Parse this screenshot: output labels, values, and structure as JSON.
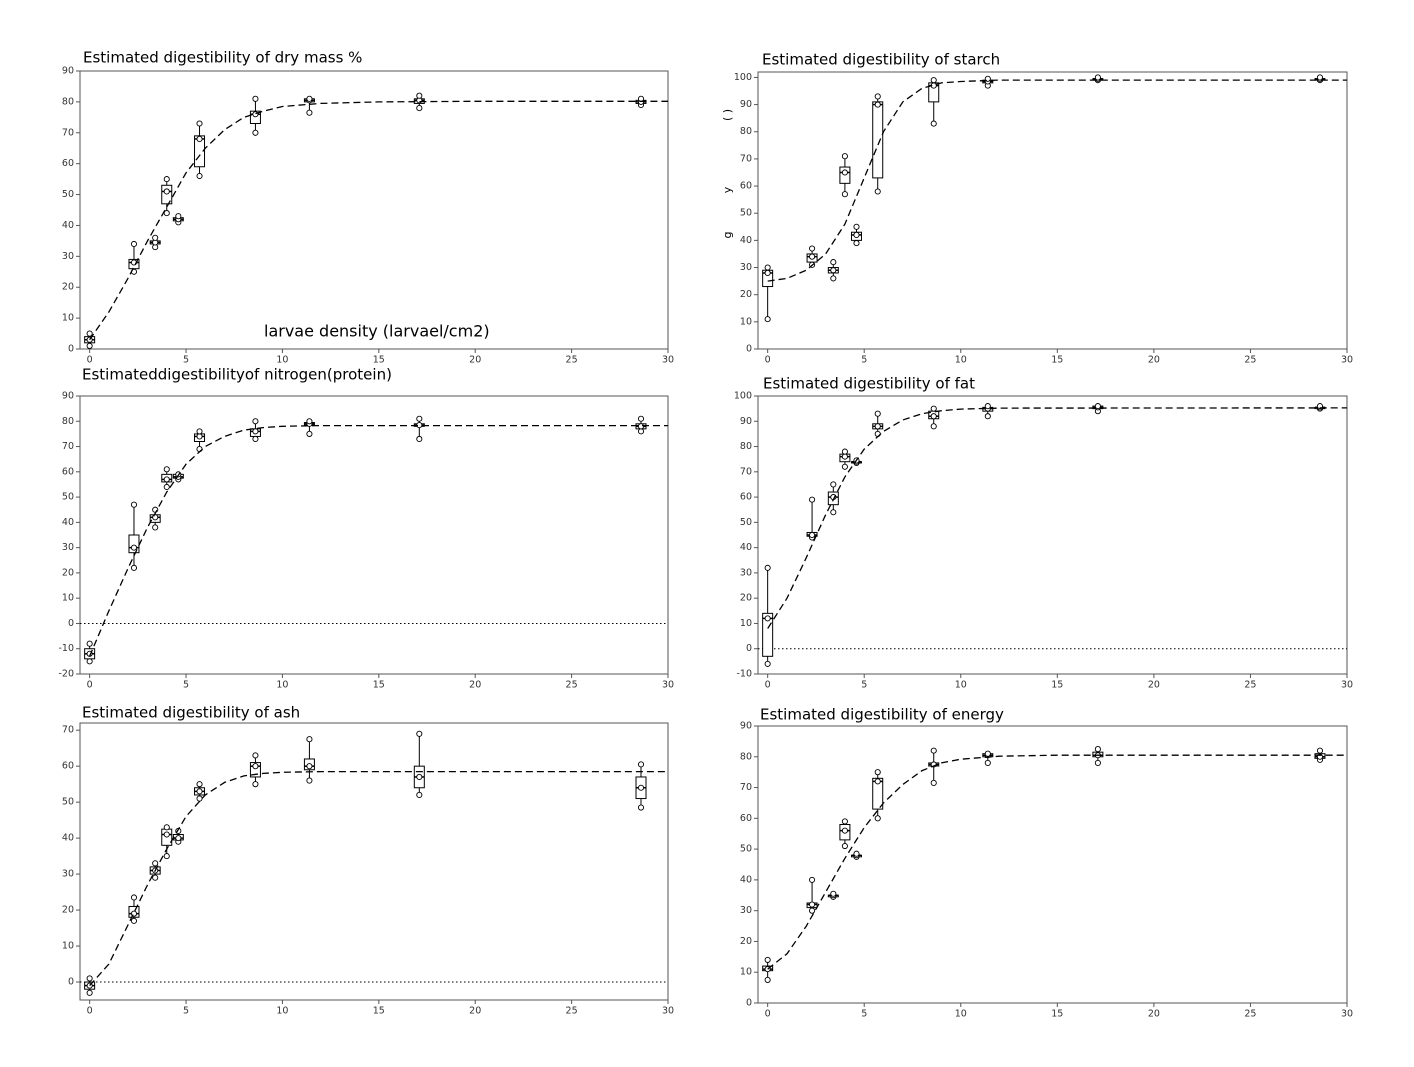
{
  "chart_data": [
    {
      "type": "box",
      "title": "Estimated digestibility of dry mass %",
      "annotation": "larvae density (larvael/cm2)",
      "xlim": [
        -0.5,
        30
      ],
      "xticks": [
        0,
        5,
        10,
        15,
        20,
        25,
        30
      ],
      "ylim": [
        0,
        90
      ],
      "yticks": [
        0,
        10,
        20,
        30,
        40,
        50,
        60,
        70,
        80,
        90
      ],
      "zero_line": false,
      "boxes": {
        "x": [
          0,
          2.3,
          3.4,
          4.0,
          4.6,
          5.7,
          8.6,
          11.4,
          17.1,
          28.6
        ],
        "min": [
          1,
          25,
          33,
          44,
          41,
          56,
          70,
          76.5,
          78,
          79
        ],
        "q1": [
          2,
          26,
          34,
          47,
          41.5,
          59,
          73,
          80,
          79.5,
          79.5
        ],
        "median": [
          3,
          28,
          34.5,
          51,
          42,
          68,
          76,
          80.5,
          80.5,
          80
        ],
        "q3": [
          4,
          29,
          35,
          53,
          42.5,
          69,
          77,
          81,
          81,
          80.5
        ],
        "max": [
          5,
          34,
          36,
          55,
          43,
          73,
          81,
          81,
          82,
          81
        ]
      },
      "curve": {
        "x": [
          0,
          1,
          2,
          3,
          4,
          5,
          6,
          7,
          8,
          9,
          10,
          12,
          15,
          20,
          30
        ],
        "y": [
          3,
          12,
          23,
          35,
          46,
          57,
          65,
          71,
          75,
          77,
          78.5,
          79.5,
          80,
          80.2,
          80.2
        ]
      }
    },
    {
      "type": "box",
      "title": "Estimated digestibility of starch",
      "y_label_parts": [
        "(   )",
        "y",
        "g"
      ],
      "xlim": [
        -0.5,
        30
      ],
      "xticks": [
        0,
        5,
        10,
        15,
        20,
        25,
        30
      ],
      "ylim": [
        0,
        102
      ],
      "yticks": [
        0,
        10,
        20,
        30,
        40,
        50,
        60,
        70,
        80,
        90,
        100
      ],
      "zero_line": false,
      "boxes": {
        "x": [
          0,
          2.3,
          3.4,
          4.0,
          4.6,
          5.7,
          8.6,
          11.4,
          17.1,
          28.6
        ],
        "min": [
          11,
          31,
          26,
          57,
          39,
          58,
          83,
          97,
          99,
          99
        ],
        "q1": [
          23,
          32,
          28,
          61,
          40,
          63,
          91,
          98,
          99.5,
          99.5
        ],
        "median": [
          28,
          34,
          29,
          65,
          42,
          90,
          97,
          98.5,
          99.5,
          99.5
        ],
        "q3": [
          29,
          35,
          30,
          67,
          43,
          91,
          98,
          99,
          99.5,
          99.5
        ],
        "max": [
          30,
          37,
          32,
          71,
          45,
          93,
          99,
          99.5,
          100,
          100
        ]
      },
      "curve": {
        "x": [
          0,
          1,
          2,
          3,
          4,
          5,
          6,
          7,
          8,
          9,
          10,
          12,
          30
        ],
        "y": [
          25,
          26,
          29,
          35,
          46,
          63,
          80,
          91,
          96,
          98,
          98.5,
          99,
          99
        ]
      }
    },
    {
      "type": "box",
      "title": "Estimateddigestibilityof nitrogen(protein)",
      "xlim": [
        -0.5,
        30
      ],
      "xticks": [
        0,
        5,
        10,
        15,
        20,
        25,
        30
      ],
      "ylim": [
        -20,
        90
      ],
      "yticks": [
        -20,
        -10,
        0,
        10,
        20,
        30,
        40,
        50,
        60,
        70,
        80,
        90
      ],
      "zero_line": true,
      "boxes": {
        "x": [
          0,
          2.3,
          3.4,
          4.0,
          4.6,
          5.7,
          8.6,
          11.4,
          17.1,
          28.6
        ],
        "min": [
          -15,
          22,
          38,
          54,
          57,
          69,
          73,
          75,
          73,
          76
        ],
        "q1": [
          -14,
          28,
          40,
          56,
          57.5,
          72,
          74,
          78.5,
          78,
          77
        ],
        "median": [
          -12,
          30,
          42,
          57,
          58,
          74,
          76,
          79,
          78.5,
          78
        ],
        "q3": [
          -10,
          35,
          43,
          59,
          59,
          75,
          77,
          79.5,
          79,
          79
        ],
        "max": [
          -8,
          47,
          45,
          61,
          59,
          76,
          80,
          80,
          81,
          81
        ]
      },
      "curve": {
        "x": [
          0,
          1,
          2,
          3,
          4,
          5,
          6,
          7,
          8,
          9,
          10,
          12,
          30
        ],
        "y": [
          -13,
          5,
          22,
          38,
          52,
          63,
          70,
          74,
          76.5,
          77.5,
          78,
          78.3,
          78.3
        ]
      }
    },
    {
      "type": "box",
      "title": "Estimated digestibility of fat",
      "xlim": [
        -0.5,
        30
      ],
      "xticks": [
        0,
        5,
        10,
        15,
        20,
        25,
        30
      ],
      "ylim": [
        -10,
        100
      ],
      "yticks": [
        -10,
        0,
        10,
        20,
        30,
        40,
        50,
        60,
        70,
        80,
        90,
        100
      ],
      "zero_line": true,
      "boxes": {
        "x": [
          0,
          2.3,
          3.4,
          4.0,
          4.6,
          5.7,
          8.6,
          11.4,
          17.1,
          28.6
        ],
        "min": [
          -6,
          44,
          54,
          72,
          73.5,
          85,
          88,
          92,
          94,
          95
        ],
        "q1": [
          -3,
          44.5,
          57,
          74,
          73.5,
          87,
          91,
          94,
          95,
          95
        ],
        "median": [
          12,
          45,
          60,
          76,
          74,
          88,
          92,
          95,
          95.5,
          95.5
        ],
        "q3": [
          14,
          46,
          62,
          77,
          74,
          89,
          94,
          95.5,
          96,
          95.5
        ],
        "max": [
          32,
          59,
          65,
          78,
          74.5,
          93,
          95,
          96,
          96,
          96
        ]
      },
      "curve": {
        "x": [
          0,
          1,
          2,
          3,
          4,
          5,
          6,
          7,
          8,
          9,
          10,
          12,
          30
        ],
        "y": [
          8,
          20,
          36,
          53,
          68,
          79,
          86,
          90.5,
          93,
          94.2,
          94.8,
          95.2,
          95.3
        ]
      }
    },
    {
      "type": "box",
      "title": "Estimated digestibility of ash",
      "xlim": [
        -0.5,
        30
      ],
      "xticks": [
        0,
        5,
        10,
        15,
        20,
        25,
        30
      ],
      "ylim": [
        -5,
        72
      ],
      "yticks": [
        0,
        10,
        20,
        30,
        40,
        50,
        60,
        70
      ],
      "zero_line": true,
      "boxes": {
        "x": [
          0,
          2.3,
          3.4,
          4.0,
          4.6,
          5.7,
          8.6,
          11.4,
          17.1,
          28.6
        ],
        "min": [
          -3,
          17,
          29,
          35,
          39,
          51,
          55,
          56,
          52,
          48.5
        ],
        "q1": [
          -2,
          18,
          30,
          38,
          39.5,
          52,
          57,
          59,
          54,
          51
        ],
        "median": [
          -1,
          19,
          31,
          41,
          40,
          53,
          60,
          60,
          57,
          54
        ],
        "q3": [
          0,
          21,
          32,
          42.5,
          41,
          54,
          61,
          62,
          60,
          57
        ],
        "max": [
          1,
          23.5,
          33,
          43,
          42,
          55,
          63,
          67.5,
          69,
          60.5
        ]
      },
      "curve": {
        "x": [
          0,
          1,
          2,
          3,
          4,
          5,
          6,
          7,
          8,
          9,
          10,
          12,
          30
        ],
        "y": [
          -1,
          5,
          16,
          27,
          37,
          46,
          52,
          55.5,
          57.3,
          58,
          58.3,
          58.5,
          58.5
        ]
      }
    },
    {
      "type": "box",
      "title": "Estimated digestibility of energy",
      "xlim": [
        -0.5,
        30
      ],
      "xticks": [
        0,
        5,
        10,
        15,
        20,
        25,
        30
      ],
      "ylim": [
        0,
        90
      ],
      "yticks": [
        0,
        10,
        20,
        30,
        40,
        50,
        60,
        70,
        80,
        90
      ],
      "zero_line": false,
      "boxes": {
        "x": [
          0,
          2.3,
          3.4,
          4.0,
          4.6,
          5.7,
          8.6,
          11.4,
          17.1,
          28.6
        ],
        "min": [
          7.5,
          30,
          34.5,
          51,
          47.5,
          60,
          71.5,
          78,
          78,
          79
        ],
        "q1": [
          10.5,
          31,
          34.5,
          53,
          47.5,
          63,
          77,
          80,
          80,
          79.5
        ],
        "median": [
          11,
          32,
          35,
          56,
          48,
          72,
          77.5,
          80.5,
          80.5,
          80
        ],
        "q3": [
          12,
          32.5,
          35,
          58,
          48,
          73,
          78,
          81,
          81.5,
          81
        ],
        "max": [
          14,
          40,
          35.5,
          59,
          48.5,
          75,
          82,
          81,
          82.5,
          82
        ]
      },
      "curve": {
        "x": [
          0,
          1,
          2,
          3,
          4,
          5,
          6,
          7,
          8,
          9,
          10,
          12,
          15,
          30
        ],
        "y": [
          11,
          16,
          25,
          36,
          47,
          57,
          65,
          71,
          75.5,
          78,
          79.2,
          80.2,
          80.5,
          80.5
        ]
      }
    }
  ]
}
